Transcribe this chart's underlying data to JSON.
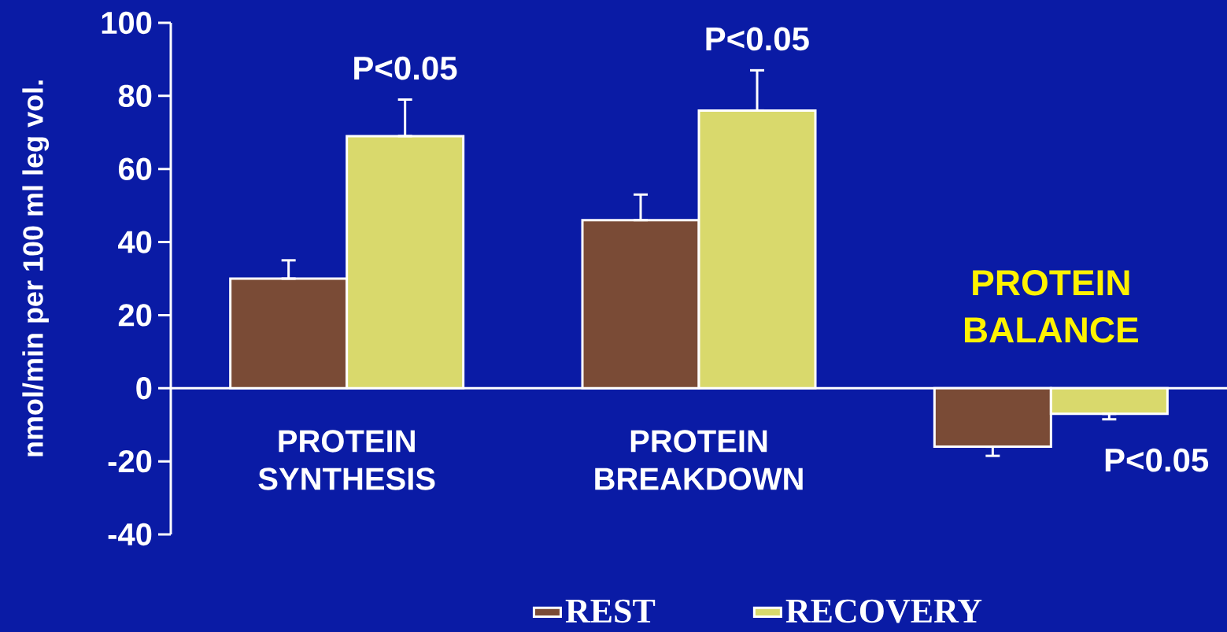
{
  "chart_data": {
    "type": "bar",
    "ylabel": "nmol/min per 100 ml leg vol.",
    "categories": [
      "PROTEIN SYNTHESIS",
      "PROTEIN BREAKDOWN",
      "PROTEIN BALANCE"
    ],
    "series": [
      {
        "name": "REST",
        "color": "#7a4b36",
        "values": [
          30,
          46,
          -16
        ],
        "errors": [
          [
            30,
            35
          ],
          [
            46,
            53
          ],
          [
            -18.5,
            -16
          ]
        ]
      },
      {
        "name": "RECOVERY",
        "color": "#d9d96c",
        "values": [
          69,
          76,
          -7
        ],
        "errors": [
          [
            69,
            79
          ],
          [
            76,
            87
          ],
          [
            -8.5,
            -7
          ]
        ]
      }
    ],
    "annotations": [
      "P<0.05",
      "P<0.05",
      "P<0.05"
    ],
    "ylim": [
      -40,
      100
    ],
    "yticks": [
      -40,
      -20,
      0,
      20,
      40,
      60,
      80,
      100
    ],
    "legend": "bottom",
    "grid": false
  }
}
